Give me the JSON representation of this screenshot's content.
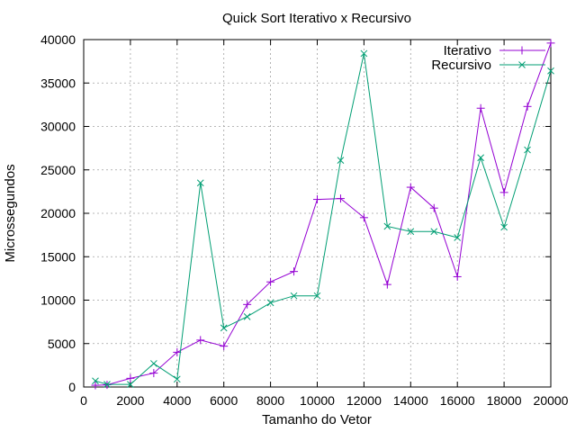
{
  "chart_data": {
    "type": "line",
    "title": "Quick Sort Iterativo x Recursivo",
    "xlabel": "Tamanho do Vetor",
    "ylabel": "Microssegundos",
    "xlim": [
      0,
      20000
    ],
    "ylim": [
      0,
      40000
    ],
    "x_ticks": [
      0,
      2000,
      4000,
      6000,
      8000,
      10000,
      12000,
      14000,
      16000,
      18000,
      20000
    ],
    "y_ticks": [
      0,
      5000,
      10000,
      15000,
      20000,
      25000,
      30000,
      35000,
      40000
    ],
    "grid": true,
    "legend_position": "top-right",
    "x": [
      500,
      1000,
      2000,
      3000,
      4000,
      5000,
      6000,
      7000,
      8000,
      9000,
      10000,
      11000,
      12000,
      13000,
      14000,
      15000,
      16000,
      17000,
      18000,
      19000,
      20000
    ],
    "series": [
      {
        "name": "Iterativo",
        "color": "#9400d3",
        "marker": "plus",
        "values": [
          200,
          250,
          1000,
          1600,
          4000,
          5400,
          4700,
          9500,
          12100,
          13300,
          21600,
          21700,
          19500,
          11800,
          23000,
          20600,
          12700,
          32100,
          22400,
          32300,
          39600
        ]
      },
      {
        "name": "Recursivo",
        "color": "#009e73",
        "marker": "cross",
        "values": [
          700,
          300,
          300,
          2700,
          900,
          23500,
          6800,
          8100,
          9700,
          10500,
          10500,
          26100,
          38400,
          18500,
          17900,
          17900,
          17200,
          26400,
          18400,
          27300,
          36400
        ]
      }
    ]
  }
}
